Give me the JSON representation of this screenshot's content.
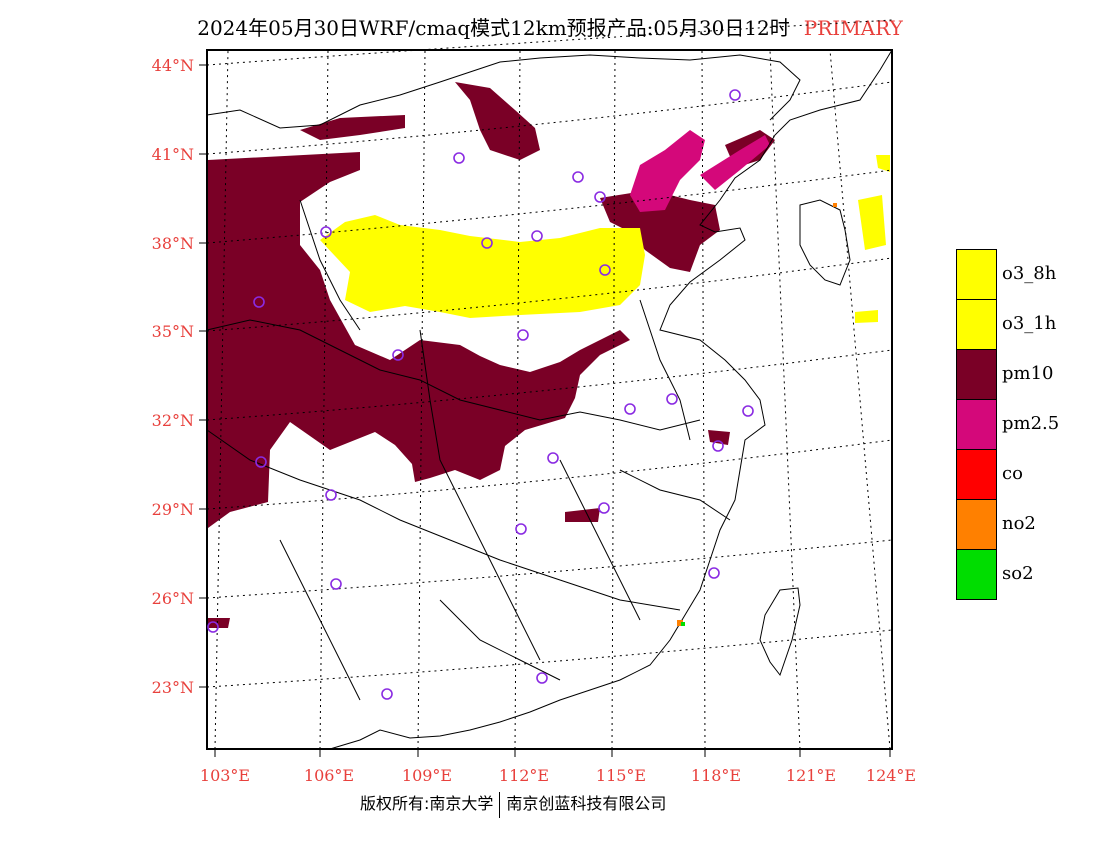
{
  "title": {
    "text": "2024年05月30日WRF/cmaq模式12km预报产品:05月30日12时",
    "tag": "PRIMARY"
  },
  "axes": {
    "lat_labels": [
      "44°N",
      "41°N",
      "38°N",
      "35°N",
      "32°N",
      "29°N",
      "26°N",
      "23°N"
    ],
    "lon_labels": [
      "103°E",
      "106°E",
      "109°E",
      "112°E",
      "115°E",
      "118°E",
      "121°E",
      "124°E"
    ]
  },
  "legend": [
    {
      "label": "o3_8h",
      "color": "#ffff00"
    },
    {
      "label": "o3_1h",
      "color": "#ffff00"
    },
    {
      "label": "pm10",
      "color": "#7a0026"
    },
    {
      "label": "pm2.5",
      "color": "#d4087a"
    },
    {
      "label": "co",
      "color": "#ff0000"
    },
    {
      "label": "no2",
      "color": "#ff8000"
    },
    {
      "label": "so2",
      "color": "#00dd00"
    }
  ],
  "footer": {
    "left": "版权所有:南京大学",
    "right": "南京创蓝科技有限公司"
  },
  "colors": {
    "pm10": "#7a0026",
    "pm25": "#d4087a",
    "o3": "#ffff00",
    "station_marker": "#8a2be2",
    "label_red": "#e8403c"
  }
}
